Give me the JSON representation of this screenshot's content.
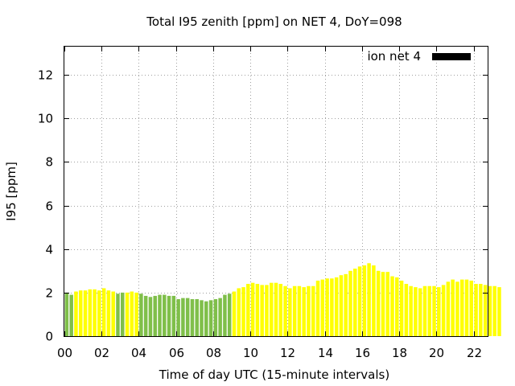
{
  "chart_data": {
    "type": "bar",
    "title": "Total I95 zenith [ppm] on NET 4, DoY=098",
    "xlabel": "Time of day UTC (15-minute intervals)",
    "ylabel": "I95 [ppm]",
    "legend": {
      "label": "ion net 4",
      "placement": "top-right",
      "color": "#000000"
    },
    "x_ticks": [
      "00",
      "02",
      "04",
      "06",
      "08",
      "10",
      "12",
      "14",
      "16",
      "18",
      "20",
      "22"
    ],
    "y_ticks": [
      "0",
      "2",
      "4",
      "6",
      "8",
      "10",
      "12"
    ],
    "xlim": [
      0,
      22.75
    ],
    "ylim": [
      0,
      13.3
    ],
    "interval_hours": 0.25,
    "colors": {
      "green": "#7fbf4a",
      "yellow": "#ffff00"
    },
    "values": [
      2.0,
      1.9,
      2.05,
      2.1,
      2.1,
      2.15,
      2.15,
      2.1,
      2.2,
      2.1,
      2.05,
      1.95,
      2.0,
      2.0,
      2.05,
      2.0,
      1.95,
      1.85,
      1.8,
      1.85,
      1.9,
      1.9,
      1.85,
      1.85,
      1.7,
      1.75,
      1.75,
      1.7,
      1.7,
      1.65,
      1.6,
      1.65,
      1.7,
      1.75,
      1.9,
      1.95,
      2.05,
      2.2,
      2.25,
      2.4,
      2.45,
      2.4,
      2.35,
      2.35,
      2.45,
      2.45,
      2.4,
      2.3,
      2.2,
      2.3,
      2.3,
      2.25,
      2.3,
      2.3,
      2.55,
      2.6,
      2.65,
      2.65,
      2.7,
      2.8,
      2.85,
      3.0,
      3.1,
      3.2,
      3.25,
      3.35,
      3.25,
      3.0,
      2.95,
      2.95,
      2.75,
      2.7,
      2.55,
      2.4,
      2.3,
      2.25,
      2.2,
      2.3,
      2.3,
      2.3,
      2.25,
      2.35,
      2.5,
      2.6,
      2.5,
      2.6,
      2.6,
      2.55,
      2.4,
      2.4,
      2.35,
      2.3,
      2.3,
      2.25
    ],
    "bar_colors": [
      "green",
      "green",
      "yellow",
      "yellow",
      "yellow",
      "yellow",
      "yellow",
      "yellow",
      "yellow",
      "yellow",
      "yellow",
      "green",
      "green",
      "yellow",
      "yellow",
      "yellow",
      "green",
      "green",
      "green",
      "green",
      "green",
      "green",
      "green",
      "green",
      "green",
      "green",
      "green",
      "green",
      "green",
      "green",
      "green",
      "green",
      "green",
      "green",
      "green",
      "green",
      "yellow",
      "yellow",
      "yellow",
      "yellow",
      "yellow",
      "yellow",
      "yellow",
      "yellow",
      "yellow",
      "yellow",
      "yellow",
      "yellow",
      "yellow",
      "yellow",
      "yellow",
      "yellow",
      "yellow",
      "yellow",
      "yellow",
      "yellow",
      "yellow",
      "yellow",
      "yellow",
      "yellow",
      "yellow",
      "yellow",
      "yellow",
      "yellow",
      "yellow",
      "yellow",
      "yellow",
      "yellow",
      "yellow",
      "yellow",
      "yellow",
      "yellow",
      "yellow",
      "yellow",
      "yellow",
      "yellow",
      "yellow",
      "yellow",
      "yellow",
      "yellow",
      "yellow",
      "yellow",
      "yellow",
      "yellow",
      "yellow",
      "yellow",
      "yellow",
      "yellow",
      "yellow",
      "yellow",
      "yellow",
      "yellow",
      "yellow",
      "yellow"
    ]
  }
}
